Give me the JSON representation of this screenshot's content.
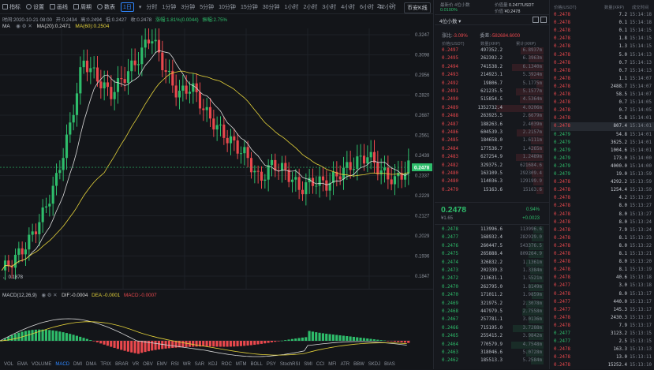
{
  "toolbar": {
    "tools": [
      "指标",
      "设置",
      "画线",
      "周期",
      "数表"
    ],
    "interval_selected": "1日",
    "intervals": [
      "分时",
      "1分钟",
      "3分钟",
      "5分钟",
      "10分钟",
      "15分钟",
      "30分钟",
      "1小时",
      "2小时",
      "3小时",
      "4小时",
      "6小时",
      "12小时"
    ],
    "right": [
      "2s",
      "⛶",
      "币安K线"
    ]
  },
  "info": {
    "time": "时间:2020-10-21 08:00",
    "open": "开:0.2434",
    "high": "高:0.2494",
    "low": "低:0.2427",
    "close": "收:0.2478",
    "change": "涨幅:1.81%(0.0044)",
    "amplitude": "振幅:2.75%"
  },
  "ma": {
    "label": "MA",
    "ma20": "MA(20):0.2471",
    "ma60": "MA(60):0.2504"
  },
  "yaxis": [
    "0.3247",
    "0.3098",
    "0.2956",
    "0.2820",
    "0.2687",
    "0.2561",
    "0.2439",
    "0.2337",
    "0.2229",
    "0.2127",
    "0.2029",
    "0.1936",
    "0.1847"
  ],
  "price_tag": "0.2478",
  "low_tag": "← 0.1878",
  "macd": {
    "label": "MACD(12,26,9)",
    "dif": "DIF:-0.0004",
    "dea": "DEA:-0.0001",
    "macd": "MACD:-0.0007"
  },
  "bottom_tabs": [
    "VOL",
    "EMA",
    "VOLUME",
    "MACD",
    "DMI",
    "DMA",
    "TRIX",
    "BRAR",
    "VR",
    "OBV",
    "EMV",
    "RSI",
    "WR",
    "SAR",
    "KDJ",
    "ROC",
    "MTM",
    "BOLL",
    "PSY",
    "StochRSI",
    "SMI",
    "CCI",
    "MFI",
    "ATR",
    "BBW",
    "SKDJ",
    "BIAS"
  ],
  "bottom_active": "MACD",
  "book": {
    "top": {
      "label1": "最新价 4位小数",
      "label2": "0.0100%",
      "label3": "价值量",
      "val3": "0.2477USDT",
      "label4": "价值",
      "val4": "¥0.2478"
    },
    "digits": "4位小数",
    "stats": {
      "change_label": "涨比:",
      "change": "-3.09%",
      "diff_label": "委差:",
      "diff": "-582684.6000"
    },
    "headers": [
      "价格(USDT)",
      "数量(XRP)",
      "累计(XRP)"
    ],
    "asks": [
      [
        "0.2497",
        "497352.2",
        "6.8937m"
      ],
      [
        "0.2495",
        "262392.2",
        "6.3963m"
      ],
      [
        "0.2494",
        "741538.2",
        "6.1340m"
      ],
      [
        "0.2493",
        "214923.1",
        "5.3924m"
      ],
      [
        "0.2492",
        "19806.7",
        "5.1775m"
      ],
      [
        "0.2491",
        "621235.5",
        "5.1577m"
      ],
      [
        "0.2490",
        "515854.5",
        "4.5364m"
      ],
      [
        "0.2489",
        "1352732.4",
        "4.0206m"
      ],
      [
        "0.2488",
        "263925.5",
        "2.6679m"
      ],
      [
        "0.2487",
        "188263.6",
        "2.4039m"
      ],
      [
        "0.2486",
        "604539.3",
        "2.2157m"
      ],
      [
        "0.2485",
        "184658.0",
        "1.6111m"
      ],
      [
        "0.2484",
        "177536.7",
        "1.4265m"
      ],
      [
        "0.2483",
        "627254.9",
        "1.2489m"
      ],
      [
        "0.2482",
        "329375.2",
        "621684.6"
      ],
      [
        "0.2480",
        "163109.5",
        "292309.4"
      ],
      [
        "0.2480",
        "114036.3",
        "129199.9"
      ],
      [
        "0.2479",
        "15163.6",
        "15163.6"
      ]
    ],
    "last": "0.2478",
    "last_sub": "¥1.65",
    "last_pct": "0.94%",
    "last_chg": "+0.0023",
    "bids": [
      [
        "0.2478",
        "113996.6",
        "113996.6"
      ],
      [
        "0.2477",
        "168932.4",
        "282929.0"
      ],
      [
        "0.2476",
        "260447.5",
        "543376.5"
      ],
      [
        "0.2475",
        "265888.4",
        "809264.9"
      ],
      [
        "0.2474",
        "326832.2",
        "1.1361m"
      ],
      [
        "0.2473",
        "202339.3",
        "1.3384m"
      ],
      [
        "0.2472",
        "213631.1",
        "1.5521m"
      ],
      [
        "0.2470",
        "262795.0",
        "1.8149m"
      ],
      [
        "0.2470",
        "171011.2",
        "1.9859m"
      ],
      [
        "0.2469",
        "321975.2",
        "2.3078m"
      ],
      [
        "0.2468",
        "447979.5",
        "2.7558m"
      ],
      [
        "0.2467",
        "257781.1",
        "3.0136m"
      ],
      [
        "0.2466",
        "715195.0",
        "3.7288m"
      ],
      [
        "0.2465",
        "255415.2",
        "3.9842m"
      ],
      [
        "0.2464",
        "770579.9",
        "4.7548m"
      ],
      [
        "0.2463",
        "318046.6",
        "5.0728m"
      ],
      [
        "0.2462",
        "185513.3",
        "5.2584m"
      ]
    ]
  },
  "trades": {
    "headers": [
      "价格(USDT)",
      "数量(XRP)",
      "成交时间"
    ],
    "rows": [
      [
        "0.2478",
        "7.2",
        "15:14:18",
        "r"
      ],
      [
        "0.2478",
        "0.1",
        "15:14:18",
        "r"
      ],
      [
        "0.2478",
        "0.1",
        "15:14:15",
        "r"
      ],
      [
        "0.2478",
        "1.8",
        "15:14:15",
        "r"
      ],
      [
        "0.2478",
        "1.3",
        "15:14:15",
        "r"
      ],
      [
        "0.2478",
        "5.0",
        "15:14:13",
        "r"
      ],
      [
        "0.2478",
        "0.7",
        "15:14:13",
        "r"
      ],
      [
        "0.2478",
        "0.7",
        "15:14:13",
        "r"
      ],
      [
        "0.2478",
        "1.1",
        "15:14:07",
        "r"
      ],
      [
        "0.2478",
        "2488.7",
        "15:14:07",
        "r"
      ],
      [
        "0.2478",
        "58.5",
        "15:14:07",
        "r"
      ],
      [
        "0.2478",
        "0.7",
        "15:14:05",
        "r"
      ],
      [
        "0.2478",
        "0.7",
        "15:14:05",
        "r"
      ],
      [
        "0.2478",
        "5.8",
        "15:14:01",
        "r"
      ],
      [
        "0.2478",
        "807.4",
        "15:14:01",
        "r"
      ],
      [
        "0.2479",
        "54.8",
        "15:14:01",
        "g"
      ],
      [
        "0.2479",
        "3625.2",
        "15:14:01",
        "g"
      ],
      [
        "0.2479",
        "1004.6",
        "15:14:01",
        "g"
      ],
      [
        "0.2479",
        "173.0",
        "15:14:00",
        "g"
      ],
      [
        "0.2479",
        "4000.0",
        "15:14:00",
        "g"
      ],
      [
        "0.2479",
        "19.0",
        "15:13:59",
        "g"
      ],
      [
        "0.2478",
        "4292.2",
        "15:13:59",
        "r"
      ],
      [
        "0.2478",
        "1254.4",
        "15:13:59",
        "r"
      ],
      [
        "0.2478",
        "4.2",
        "15:13:27",
        "r"
      ],
      [
        "0.2478",
        "8.0",
        "15:13:27",
        "r"
      ],
      [
        "0.2478",
        "8.0",
        "15:13:27",
        "r"
      ],
      [
        "0.2478",
        "8.0",
        "15:13:24",
        "r"
      ],
      [
        "0.2478",
        "7.9",
        "15:13:24",
        "r"
      ],
      [
        "0.2478",
        "8.1",
        "15:13:23",
        "r"
      ],
      [
        "0.2478",
        "8.0",
        "15:13:22",
        "r"
      ],
      [
        "0.2478",
        "8.1",
        "15:13:21",
        "r"
      ],
      [
        "0.2478",
        "8.0",
        "15:13:20",
        "r"
      ],
      [
        "0.2478",
        "8.1",
        "15:13:19",
        "r"
      ],
      [
        "0.2478",
        "40.6",
        "15:13:18",
        "r"
      ],
      [
        "0.2477",
        "3.0",
        "15:13:18",
        "r"
      ],
      [
        "0.2478",
        "8.0",
        "15:13:17",
        "r"
      ],
      [
        "0.2477",
        "440.0",
        "15:13:17",
        "r"
      ],
      [
        "0.2477",
        "145.3",
        "15:13:17",
        "r"
      ],
      [
        "0.2478",
        "2430.3",
        "15:13:17",
        "r"
      ],
      [
        "0.2478",
        "7.9",
        "15:13:17",
        "r"
      ],
      [
        "0.2477",
        "3123.2",
        "15:13:15",
        "g"
      ],
      [
        "0.2477",
        "2.5",
        "15:13:15",
        "g"
      ],
      [
        "0.2478",
        "163.3",
        "15:13:13",
        "r"
      ],
      [
        "0.2478",
        "13.0",
        "15:13:11",
        "r"
      ],
      [
        "0.2478",
        "15252.4",
        "15:13:10",
        "r"
      ]
    ]
  },
  "colors": {
    "up": "#2ebd6b",
    "down": "#e9484d",
    "accent": "#2f87ff",
    "ma20": "#d9d9d9",
    "ma60": "#e4d23a",
    "bg": "#131519"
  }
}
